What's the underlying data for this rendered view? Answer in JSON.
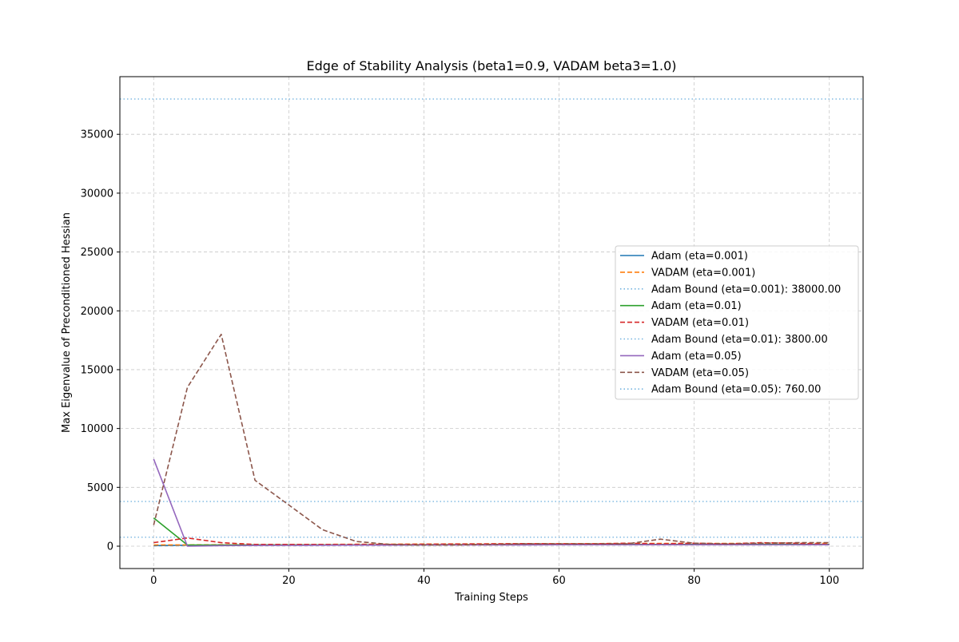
{
  "chart_data": {
    "type": "line",
    "title": "Edge of Stability Analysis (beta1=0.9, VADAM beta3=1.0)",
    "xlabel": "Training Steps",
    "ylabel": "Max Eigenvalue of Preconditioned Hessian",
    "xlim": [
      -5,
      105
    ],
    "ylim": [
      -1900,
      39900
    ],
    "xticks": [
      0,
      20,
      40,
      60,
      80,
      100
    ],
    "yticks": [
      0,
      5000,
      10000,
      15000,
      20000,
      25000,
      30000,
      35000
    ],
    "grid": true,
    "legend_position": "center-right",
    "x": [
      0,
      5,
      10,
      15,
      20,
      25,
      30,
      35,
      40,
      45,
      50,
      55,
      60,
      65,
      70,
      75,
      80,
      85,
      90,
      95,
      100
    ],
    "series": [
      {
        "name": "Adam (eta=0.001)",
        "color": "#1f77b4",
        "style": "solid",
        "values": [
          50,
          80,
          90,
          95,
          100,
          100,
          110,
          110,
          120,
          120,
          130,
          130,
          140,
          140,
          150,
          150,
          150,
          150,
          150,
          150,
          150
        ]
      },
      {
        "name": "VADAM (eta=0.001)",
        "color": "#ff7f0e",
        "style": "dashed",
        "values": [
          100,
          110,
          120,
          130,
          140,
          150,
          160,
          170,
          180,
          190,
          200,
          210,
          220,
          220,
          230,
          230,
          230,
          240,
          240,
          240,
          250
        ]
      },
      {
        "name": "Adam Bound (eta=0.001): 38000.00",
        "color": "#75b4e0",
        "style": "dotted",
        "hline": 38000
      },
      {
        "name": "Adam (eta=0.01)",
        "color": "#2ca02c",
        "style": "solid",
        "values": [
          2400,
          100,
          100,
          100,
          100,
          100,
          100,
          110,
          110,
          120,
          120,
          130,
          130,
          140,
          150,
          150,
          150,
          150,
          150,
          150,
          150
        ]
      },
      {
        "name": "VADAM (eta=0.01)",
        "color": "#d62728",
        "style": "dashed",
        "values": [
          300,
          700,
          300,
          150,
          150,
          150,
          150,
          150,
          160,
          180,
          200,
          220,
          200,
          200,
          250,
          200,
          250,
          200,
          300,
          250,
          150
        ]
      },
      {
        "name": "Adam Bound (eta=0.01): 3800.00",
        "color": "#75b4e0",
        "style": "dotted",
        "hline": 3800
      },
      {
        "name": "Adam (eta=0.05)",
        "color": "#9467bd",
        "style": "solid",
        "values": [
          7400,
          0,
          50,
          60,
          70,
          80,
          90,
          90,
          100,
          100,
          110,
          110,
          120,
          120,
          120,
          120,
          120,
          120,
          120,
          120,
          120
        ]
      },
      {
        "name": "VADAM (eta=0.05)",
        "color": "#8c564b",
        "style": "dashed",
        "values": [
          1800,
          13500,
          18000,
          5600,
          3500,
          1400,
          400,
          150,
          100,
          100,
          150,
          200,
          200,
          200,
          200,
          600,
          250,
          200,
          250,
          300,
          300
        ]
      },
      {
        "name": "Adam Bound (eta=0.05): 760.00",
        "color": "#75b4e0",
        "style": "dotted",
        "hline": 760
      }
    ]
  }
}
